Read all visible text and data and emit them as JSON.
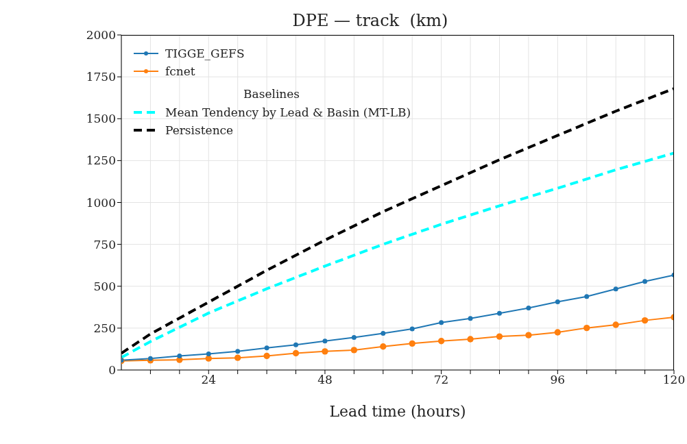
{
  "chart_data": {
    "type": "line",
    "title": "DPE — track  (km)",
    "xlabel": "Lead time (hours)",
    "xlim": [
      6,
      120
    ],
    "ylim": [
      0,
      2000
    ],
    "xticks": [
      {
        "value": 12,
        "label": null
      },
      {
        "value": 18,
        "label": null
      },
      24,
      {
        "value": 30,
        "label": null
      },
      {
        "value": 36,
        "label": null
      },
      {
        "value": 42,
        "label": null
      },
      48,
      {
        "value": 54,
        "label": null
      },
      {
        "value": 60,
        "label": null
      },
      {
        "value": 66,
        "label": null
      },
      72,
      {
        "value": 78,
        "label": null
      },
      {
        "value": 84,
        "label": null
      },
      {
        "value": 90,
        "label": null
      },
      96,
      {
        "value": 102,
        "label": null
      },
      {
        "value": 108,
        "label": null
      },
      {
        "value": 114,
        "label": null
      },
      120
    ],
    "yticks": [
      0,
      250,
      500,
      750,
      1000,
      1250,
      1500,
      1750,
      2000
    ],
    "grid": true,
    "legend": "top left",
    "legend_title": "Baselines",
    "marker": "circle",
    "line_style": "solid",
    "series": [
      {
        "name": "TIGGE_GEFS",
        "color": "#1f77b4",
        "x": [
          6,
          12,
          18,
          24,
          30,
          36,
          42,
          48,
          54,
          60,
          66,
          72,
          78,
          84,
          90,
          96,
          102,
          108,
          114,
          120
        ],
        "values": [
          58,
          69,
          84,
          96,
          111,
          132,
          150,
          173,
          194,
          219,
          245,
          283,
          308,
          338,
          370,
          407,
          439,
          484,
          529,
          567
        ]
      },
      {
        "name": "fcnet",
        "color": "#ff7f0e",
        "x": [
          6,
          12,
          18,
          24,
          30,
          36,
          42,
          48,
          54,
          60,
          66,
          72,
          78,
          84,
          90,
          96,
          102,
          108,
          114,
          120
        ],
        "values": [
          54,
          58,
          61,
          69,
          73,
          84,
          100,
          111,
          119,
          140,
          158,
          173,
          184,
          200,
          208,
          225,
          251,
          270,
          296,
          315
        ]
      },
      {
        "name": "Mean Tendency by Lead & Basin (MT-LB)",
        "color": "#00ffff",
        "line_style": "dashed",
        "marker": "none",
        "x": [
          6,
          12,
          18,
          24,
          36,
          48,
          60,
          72,
          84,
          96,
          108,
          120
        ],
        "values": [
          75,
          170,
          255,
          340,
          485,
          620,
          750,
          870,
          980,
          1085,
          1195,
          1295
        ]
      },
      {
        "name": "Persistence",
        "color": "#000000",
        "line_style": "dashed",
        "marker": "none",
        "x": [
          6,
          12,
          18,
          24,
          36,
          48,
          60,
          72,
          84,
          96,
          108,
          120
        ],
        "values": [
          100,
          215,
          310,
          405,
          595,
          775,
          945,
          1100,
          1255,
          1400,
          1545,
          1680
        ]
      }
    ]
  }
}
